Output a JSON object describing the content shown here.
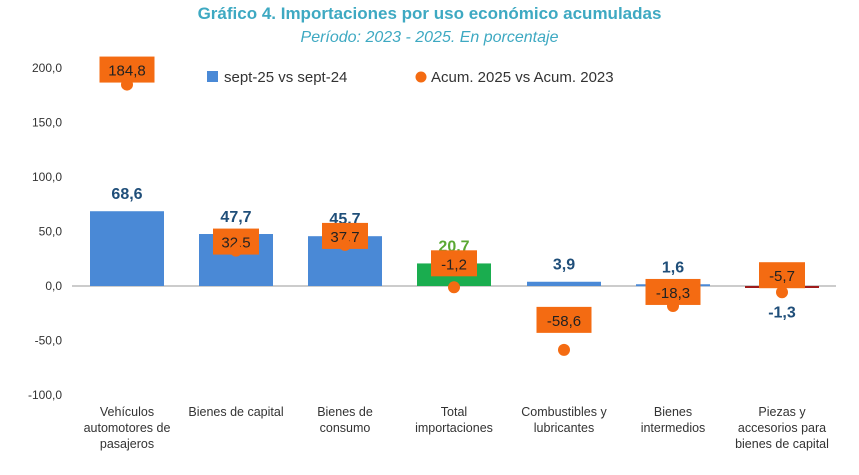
{
  "chart_data": {
    "type": "bar",
    "title": "Gráfico 4. Importaciones por uso económico acumuladas",
    "subtitle": "Período: 2023 - 2025. En porcentaje",
    "yticks": [
      "200,0",
      "150,0",
      "100,0",
      "50,0",
      "0,0",
      "-50,0",
      "-100,0"
    ],
    "ylim": [
      -100,
      200
    ],
    "categories": [
      [
        "Vehículos",
        "automotores de",
        "pasajeros"
      ],
      [
        "Bienes de capital"
      ],
      [
        "Bienes de",
        "consumo"
      ],
      [
        "Total",
        "importaciones"
      ],
      [
        "Combustibles y",
        "lubricantes"
      ],
      [
        "Bienes",
        "intermedios"
      ],
      [
        "Piezas y",
        "accesorios para",
        "bienes de capital"
      ]
    ],
    "series": [
      {
        "name": "sept-25 vs sept-24",
        "type": "bar",
        "values": [
          68.6,
          47.7,
          45.7,
          20.7,
          3.9,
          1.6,
          -1.3
        ],
        "labels": [
          "68,6",
          "47,7",
          "45,7",
          "20,7",
          "3,9",
          "1,6",
          "-1,3"
        ],
        "colors": [
          "#4a89d6",
          "#4a89d6",
          "#4a89d6",
          "#1aad4f",
          "#4a89d6",
          "#4a89d6",
          "#9e1b1b"
        ],
        "label_colors": [
          "#1f4e79",
          "#1f4e79",
          "#1f4e79",
          "#5aa832",
          "#1f4e79",
          "#1f4e79",
          "#1f4e79"
        ]
      },
      {
        "name": "Acum. 2025 vs Acum. 2023",
        "type": "dot",
        "values": [
          184.8,
          32.5,
          37.7,
          -1.2,
          -58.6,
          -18.3,
          -5.7
        ],
        "labels": [
          "184,8",
          "32,5",
          "37,7",
          "-1,2",
          "-58,6",
          "-18,3",
          "-5,7"
        ],
        "color": "#f46b12"
      }
    ]
  }
}
